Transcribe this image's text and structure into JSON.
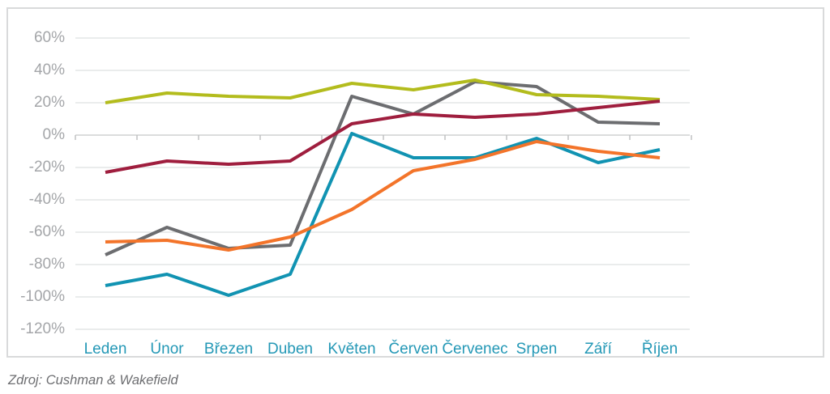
{
  "chart_data": {
    "type": "line",
    "title": "",
    "legend": "none",
    "grid": true,
    "categories": [
      "Leden",
      "Únor",
      "Březen",
      "Duben",
      "Květen",
      "Červen",
      "Červenec",
      "Srpen",
      "Září",
      "Říjen"
    ],
    "series": [
      {
        "name": "gray-line",
        "color": "#6c6d70",
        "values": [
          -74,
          -57,
          -70,
          -68,
          24,
          13,
          33,
          30,
          8,
          7
        ]
      },
      {
        "name": "olive-line",
        "color": "#b3bc1d",
        "values": [
          20,
          26,
          24,
          23,
          32,
          28,
          34,
          25,
          24,
          22
        ]
      },
      {
        "name": "teal-line",
        "color": "#1193b2",
        "values": [
          -93,
          -86,
          -99,
          -86,
          1,
          -14,
          -14,
          -2,
          -17,
          -9
        ]
      },
      {
        "name": "orange-line",
        "color": "#f3742a",
        "values": [
          -66,
          -65,
          -71,
          -63,
          -46,
          -22,
          -15,
          -4,
          -10,
          -14
        ]
      },
      {
        "name": "maroon-line",
        "color": "#9f1e3e",
        "values": [
          -23,
          -16,
          -18,
          -16,
          7,
          13,
          11,
          13,
          17,
          21
        ]
      }
    ],
    "y_axis": {
      "min": -120,
      "max": 60,
      "step": 20,
      "tick_labels": [
        "60%",
        "40%",
        "20%",
        "0%",
        "-20%",
        "-40%",
        "-60%",
        "-80%",
        "-100%",
        "-120%"
      ]
    },
    "x_axis": {
      "tick_marks_between_categories": true
    }
  },
  "source_note": "Zdroj: Cushman & Wakefield",
  "colors": {
    "gridline": "#e4e5e6",
    "zero_axis": "#cfd0d1",
    "tick_mark": "#bcbdbf",
    "frame_border": "#d9dadb",
    "y_label_text": "#a4a6a9",
    "x_label_text": "#2498b6",
    "source_text": "#6d6e71"
  }
}
